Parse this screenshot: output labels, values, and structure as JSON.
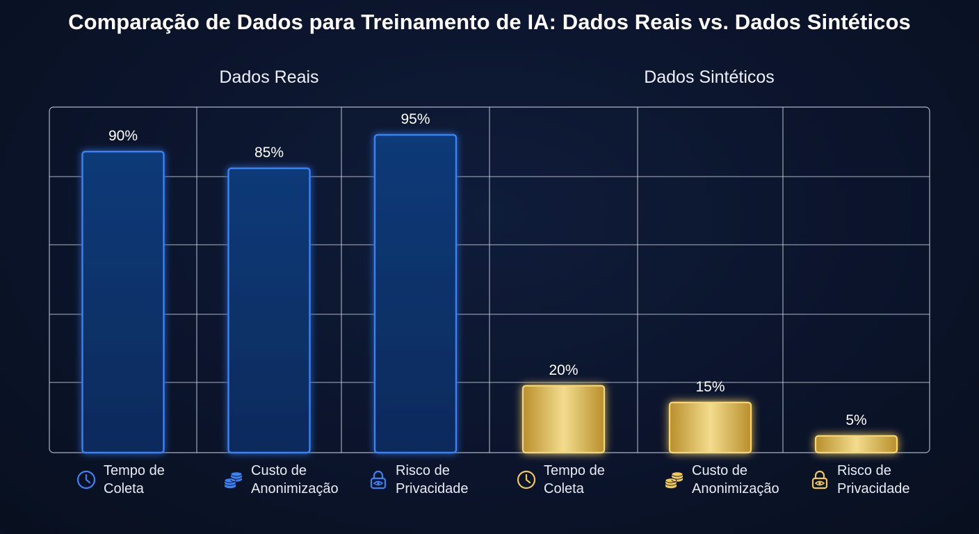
{
  "title": "Comparação de Dados para Treinamento de IA: Dados Reais vs. Dados Sintéticos",
  "colors": {
    "real": "#2f6fe8",
    "synthetic": "#f0c95a",
    "background": "#0b142b",
    "grid": "#c9d0de"
  },
  "chart_data": {
    "type": "bar",
    "ylim": [
      0,
      100
    ],
    "grid": true,
    "groups": [
      {
        "name": "Dados Reais",
        "color": "#2f6fe8",
        "categories": [
          {
            "label_line1": "Tempo de",
            "label_line2": "Coleta",
            "icon": "clock-icon",
            "value": 90,
            "value_label": "90%"
          },
          {
            "label_line1": "Custo de",
            "label_line2": "Anonimização",
            "icon": "coins-icon",
            "value": 85,
            "value_label": "85%"
          },
          {
            "label_line1": "Risco de",
            "label_line2": "Privacidade",
            "icon": "lock-eye-icon",
            "value": 95,
            "value_label": "95%"
          }
        ]
      },
      {
        "name": "Dados Sintéticos",
        "color": "#f0c95a",
        "categories": [
          {
            "label_line1": "Tempo de",
            "label_line2": "Coleta",
            "icon": "clock-icon",
            "value": 20,
            "value_label": "20%"
          },
          {
            "label_line1": "Custo de",
            "label_line2": "Anonimização",
            "icon": "coins-icon",
            "value": 15,
            "value_label": "15%"
          },
          {
            "label_line1": "Risco de",
            "label_line2": "Privacidade",
            "icon": "lock-eye-icon",
            "value": 5,
            "value_label": "5%"
          }
        ]
      }
    ]
  }
}
